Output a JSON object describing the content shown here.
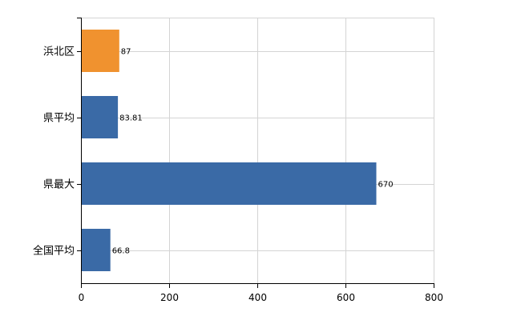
{
  "chart_data": {
    "type": "bar",
    "orientation": "horizontal",
    "categories": [
      "浜北区",
      "県平均",
      "県最大",
      "全国平均"
    ],
    "values": [
      87,
      83.81,
      670,
      66.8
    ],
    "value_labels": [
      "87",
      "83.81",
      "670",
      "66.8"
    ],
    "highlight_index": 0,
    "xlim": [
      0,
      800
    ],
    "xticks": [
      0,
      200,
      400,
      600,
      800
    ],
    "xtick_labels": [
      "0",
      "200",
      "400",
      "600",
      "800"
    ],
    "grid": true,
    "legend": "none",
    "title": "",
    "xlabel": "",
    "ylabel": ""
  },
  "colors": {
    "highlight": "#f0922f",
    "bar": "#3a6aa6",
    "grid": "#d4d4d4",
    "axis": "#000000"
  }
}
